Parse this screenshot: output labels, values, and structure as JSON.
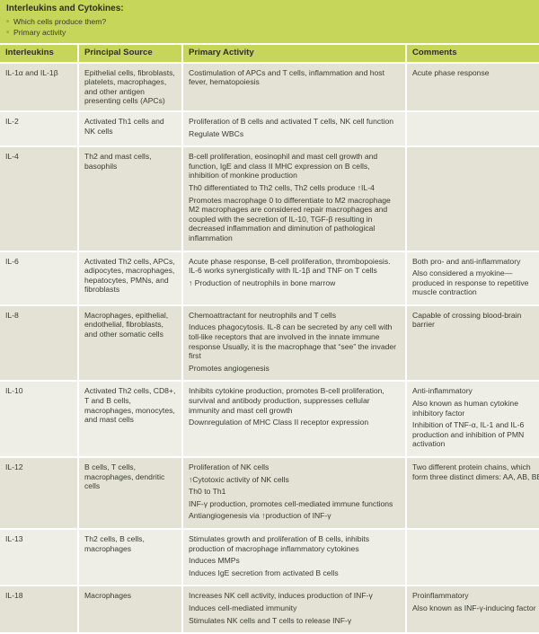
{
  "title": "Interleukins and Cytokines:",
  "bullets": [
    "Which cells produce them?",
    "Primary activity"
  ],
  "columns": [
    "Interleukins",
    "Principal Source",
    "Primary Activity",
    "Comments"
  ],
  "colors": {
    "accent": "#c6d65a",
    "row_dark": "#e3e2d4",
    "row_light": "#efeee6"
  },
  "rows": [
    {
      "name": "IL-1α and IL-1β",
      "source": "Epithelial cells, fibroblasts, platelets, macrophages, and other antigen presenting cells (APCs)",
      "activity": [
        "Costimulation of APCs and T cells, inflammation and host fever, hematopoiesis"
      ],
      "comments": [
        "Acute phase response"
      ]
    },
    {
      "name": "IL-2",
      "source": "Activated Th1 cells and NK cells",
      "activity": [
        "Proliferation of B cells and activated T cells, NK cell function",
        "Regulate WBCs"
      ],
      "comments": []
    },
    {
      "name": "IL-4",
      "source": "Th2 and mast cells, basophils",
      "activity": [
        "B-cell proliferation, eosinophil and mast cell growth and function, IgE and class II MHC expression on B cells, inhibition of monkine production",
        "Th0 differentiated to Th2 cells, Th2 cells produce ↑IL-4",
        "Promotes macrophage 0 to differentiate to M2 macrophage M2 macrophages are considered repair macrophages and coupled with the secretion of IL-10, TGF-β resulting in decreased inflammation and diminution of pathological inflammation"
      ],
      "comments": []
    },
    {
      "name": "IL-6",
      "source": "Activated Th2 cells, APCs, adipocytes, macrophages, hepatocytes, PMNs, and fibroblasts",
      "activity": [
        "Acute phase response, B-cell proliferation, thrombopoiesis. IL-6 works synergistically with IL-1β and TNF on T cells",
        "↑ Production of neutrophils in bone marrow"
      ],
      "comments": [
        "Both pro- and anti-inflammatory",
        "Also considered a myokine—produced in response to repetitive muscle contraction"
      ]
    },
    {
      "name": "IL-8",
      "source": "Macrophages, epithelial, endothelial, fibroblasts, and other somatic cells",
      "activity": [
        "Chemoattractant for neutrophils and T cells",
        "Induces phagocytosis. IL-8 can be secreted by any cell with toll-like receptors that are involved in the innate immune response Usually, it is the macrophage that “see” the invader first",
        "Promotes angiogenesis"
      ],
      "comments": [
        "Capable of crossing blood-brain barrier"
      ]
    },
    {
      "name": "IL-10",
      "source": "Activated Th2 cells, CD8+, T and B cells, macrophages, monocytes, and mast cells",
      "activity": [
        "Inhibits cytokine production, promotes B-cell proliferation, survival and antibody production, suppresses cellular immunity and mast cell growth",
        "Downregulation of MHC Class II receptor expression"
      ],
      "comments": [
        "Anti-inflammatory",
        "Also known as human cytokine inhibitory factor",
        "Inhibition of TNF-α, IL-1 and IL-6 production and inhibition of PMN activation"
      ]
    },
    {
      "name": "IL-12",
      "source": "B cells, T cells, macrophages, dendritic cells",
      "activity": [
        "Proliferation of NK cells",
        "↑Cytotoxic activity of NK cells",
        "Th0 to Th1",
        "INF-γ production, promotes cell-mediated immune functions",
        "Antiangiogenesis via ↑production of INF-γ"
      ],
      "comments": [
        "Two different protein chains, which form three distinct dimers: AA, AB, BB"
      ]
    },
    {
      "name": "IL-13",
      "source": "Th2 cells, B cells, macrophages",
      "activity": [
        "Stimulates growth and proliferation of B cells, inhibits production of macrophage inflammatory cytokines",
        "Induces MMPs",
        "Induces IgE secretion from activated B cells"
      ],
      "comments": []
    },
    {
      "name": "IL-18",
      "source": "Macrophages",
      "activity": [
        "Increases NK cell activity, induces production of INF-γ",
        "Induces cell-mediated immunity",
        "Stimulates NK cells and T cells to release INF-γ"
      ],
      "comments": [
        "Proinflammatory",
        "Also known as INF-γ-inducing factor"
      ]
    }
  ]
}
